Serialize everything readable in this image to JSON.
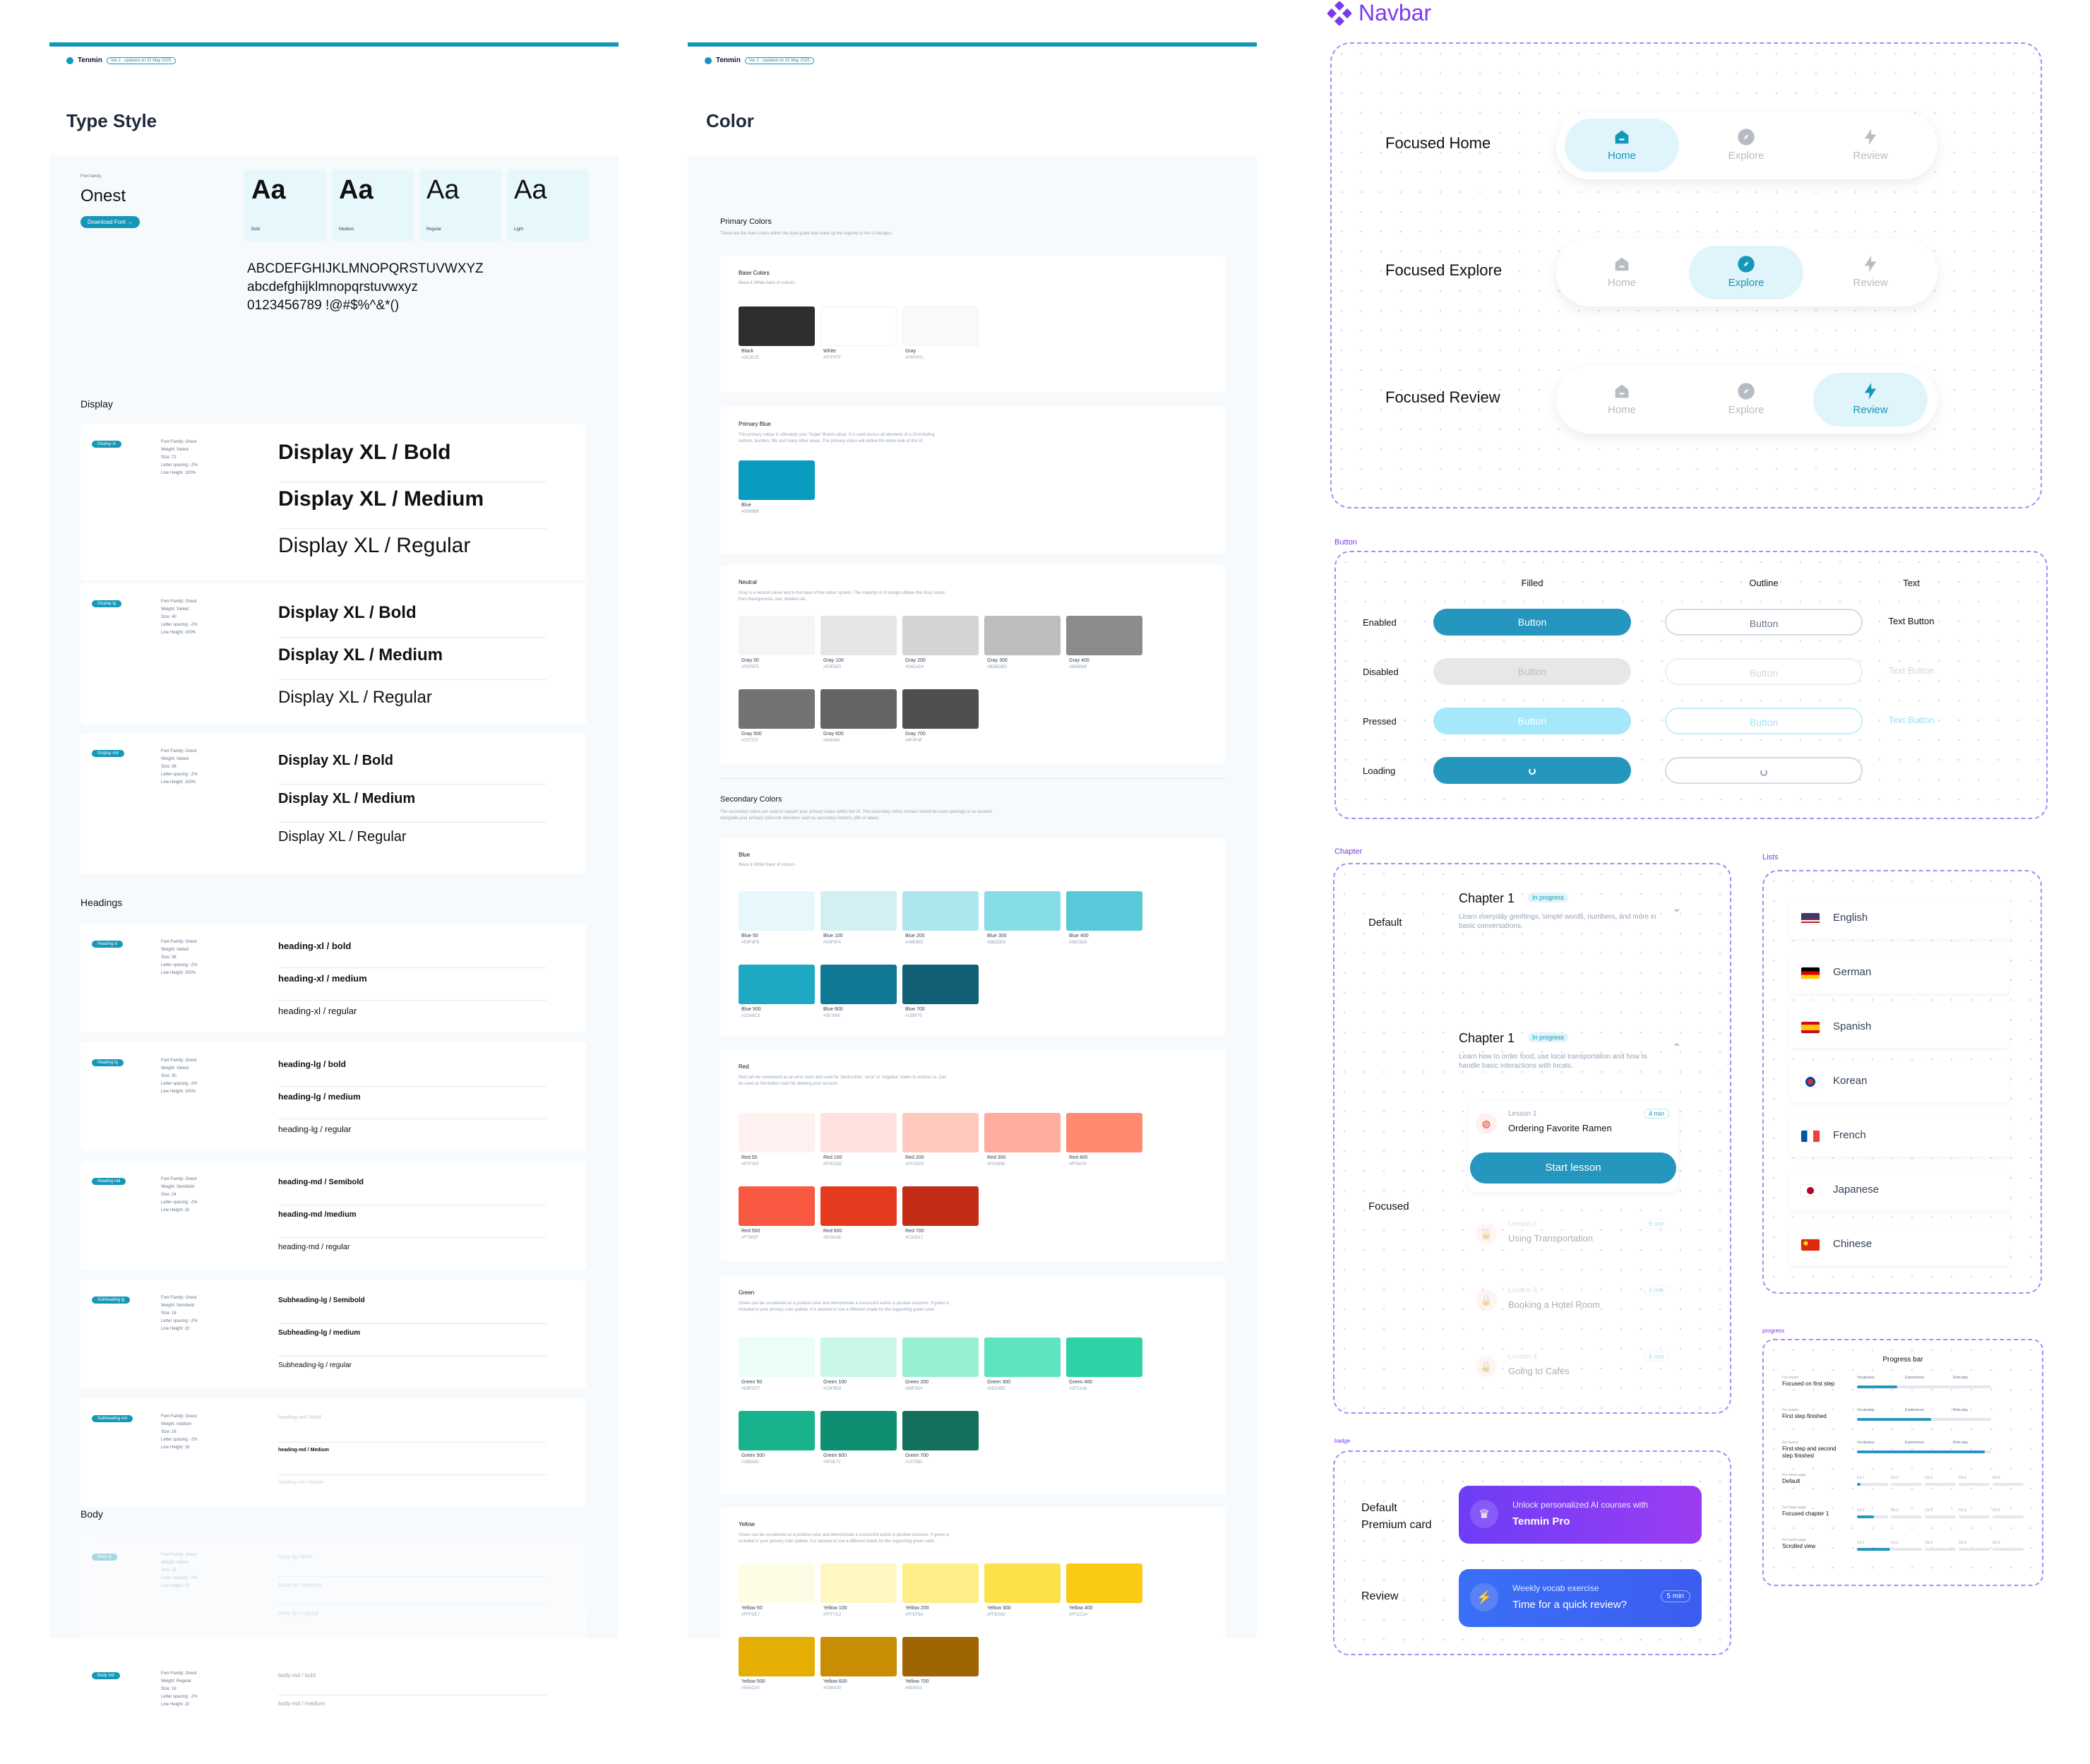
{
  "type_style": {
    "brand": "Tenmin",
    "badge": "Ver 2 · updated on 31 May 2025",
    "title": "Type Style",
    "font_family_label": "Font family",
    "font_name": "Onest",
    "download_label": "Download Font →",
    "weights": [
      {
        "sample": "Aa",
        "label": "Bold"
      },
      {
        "sample": "Aa",
        "label": "Medium"
      },
      {
        "sample": "Aa",
        "label": "Regular"
      },
      {
        "sample": "Aa",
        "label": "Light"
      }
    ],
    "alphabet_upper": "ABCDEFGHIJKLMNOPQRSTUVWXYZ",
    "alphabet_lower": "abcdefghijklmnopqrstuvwxyz",
    "alphabet_digits": "0123456789 !@#$%^&*()",
    "display_heading": "Display",
    "display_groups": [
      {
        "chip": "Display xl",
        "meta": [
          "Font Family: Onest",
          "Weight: Varied",
          "Size: 72",
          "Letter spacing: -2%",
          "Line Height: 100%"
        ],
        "samples": [
          "Display XL / Bold",
          "Display XL / Medium",
          "Display XL / Regular"
        ]
      },
      {
        "chip": "Display lg",
        "meta": [
          "Font Family: Onest",
          "Weight: Varied",
          "Size: 40",
          "Letter spacing: -2%",
          "Line Height: 100%"
        ],
        "samples": [
          "Display XL / Bold",
          "Display XL / Medium",
          "Display XL / Regular"
        ]
      },
      {
        "chip": "Display md",
        "meta": [
          "Font Family: Onest",
          "Weight: Varied",
          "Size: 36",
          "Letter spacing: -2%",
          "Line Height: 100%"
        ],
        "samples": [
          "Display XL / Bold",
          "Display XL / Medium",
          "Display XL / Regular"
        ]
      }
    ],
    "headings_heading": "Headings",
    "heading_groups": [
      {
        "chip": "Heading xl",
        "meta": [
          "Font Family: Onest",
          "Weight: Varied",
          "Size: 36",
          "Letter spacing: -2%",
          "Line Height: 100%"
        ],
        "samples": [
          "heading-xl / bold",
          "heading-xl / medium",
          "heading-xl / regular"
        ]
      },
      {
        "chip": "Heading lg",
        "meta": [
          "Font Family: Onest",
          "Weight: Varied",
          "Size: 30",
          "Letter spacing: -2%",
          "Line Height: 100%"
        ],
        "samples": [
          "heading-lg / bold",
          "heading-lg / medium",
          "heading-lg / regular"
        ]
      },
      {
        "chip": "Heading md",
        "meta": [
          "Font Family: Onest",
          "Weight: Semibold",
          "Size: 24",
          "Letter spacing: -2%",
          "Line Height: 32"
        ],
        "samples": [
          "heading-md / Semibold",
          "heading-md /medium",
          "heading-md / regular"
        ]
      },
      {
        "chip": "Subheading lg",
        "meta": [
          "Font Family: Onest",
          "Weight: Semibold",
          "Size: 18",
          "Letter spacing: -2%",
          "Line Height: 22"
        ],
        "samples": [
          "Subheading-lg / Semibold",
          "Subheading-lg / medium",
          "Subheading-lg / regular"
        ]
      },
      {
        "chip": "Subheading md",
        "meta": [
          "Font Family: Onest",
          "Weight: medium",
          "Size: 16",
          "Letter spacing: -2%",
          "Line Height: 16"
        ],
        "samples": [
          "heading-md / Bold",
          "heading-md / Medium",
          "heading-md / regular"
        ]
      }
    ],
    "body_heading": "Body",
    "body_groups": [
      {
        "chip": "Body lg",
        "meta": [
          "Font Family: Onest",
          "Weight: Varied",
          "Size: 18",
          "Letter spacing: -2%",
          "Line Height: 22"
        ],
        "samples": [
          "body-lg / bold",
          "body-lg / medium",
          "body-lg / regular"
        ]
      },
      {
        "chip": "Body md",
        "meta": [
          "Font Family: Onest",
          "Weight: Regular",
          "Size: 16",
          "Letter spacing: -2%",
          "Line Height: 22"
        ],
        "samples": [
          "body-md / bold",
          "body-md / medium"
        ]
      }
    ]
  },
  "color": {
    "brand": "Tenmin",
    "badge": "Ver 2 · updated on 31 May 2025",
    "title": "Color",
    "primary_title": "Primary Colors",
    "primary_desc": "These are the main colors within the style guide that make up the majority of the UI designs.",
    "base_title": "Base Colors",
    "base_desc": "Black & White base of colours",
    "base_swatches": [
      {
        "name": "Black",
        "hex": "#2E2E2E",
        "color": "#2e2e2e"
      },
      {
        "name": "White",
        "hex": "#FFFFFF",
        "color": "#ffffff"
      },
      {
        "name": "Gray",
        "hex": "#F9FAFC",
        "color": "#f9fafc"
      }
    ],
    "blue_title": "Primary Blue",
    "blue_desc": "This primary colour is ultimately your 'Super' Brand colour. It is used across all elements of a UI including buttons, borders, fills and many other areas. The primary colour will define the entire look of the UI.",
    "blue_swatches": [
      {
        "name": "Blue",
        "hex": "#0099BB",
        "color": "#0a9cbf"
      }
    ],
    "neutral_title": "Neutral",
    "neutral_desc": "Gray is a neutral colour and is the base of the colour system. The majority of UI design utilises the Gray colour from Backgrounds, text, dividers etc.",
    "neutral_swatches": [
      {
        "name": "Gray 50",
        "hex": "#F5F5F5",
        "color": "#f5f5f5"
      },
      {
        "name": "Gray 100",
        "hex": "#E5E5E5",
        "color": "#e5e5e5"
      },
      {
        "name": "Gray 200",
        "hex": "#D4D4D4",
        "color": "#d4d4d4"
      },
      {
        "name": "Gray 300",
        "hex": "#BDBDBD",
        "color": "#bdbdbd"
      },
      {
        "name": "Gray 400",
        "hex": "#8B8B8B",
        "color": "#8b8b8b"
      },
      {
        "name": "Gray 500",
        "hex": "#737373",
        "color": "#737373"
      },
      {
        "name": "Gray 600",
        "hex": "#646464",
        "color": "#646464"
      },
      {
        "name": "Gray 700",
        "hex": "#4F4F4F",
        "color": "#4f4f4f"
      }
    ],
    "secondary_title": "Secondary Colors",
    "secondary_desc": "The secondary colors are used to support your primary colors within the UI. The secondary colors chosen should be used sparingly or as accents alongside your primary colors for elements such as secondary buttons, pills or labels.",
    "sec_blue_title": "Blue",
    "sec_blue_desc": "Black & White base of colours",
    "sec_blue_swatches": [
      {
        "name": "Blue 50",
        "hex": "#E6F8FB",
        "color": "#e6f8fb"
      },
      {
        "name": "Blue 100",
        "hex": "#D4F0F4",
        "color": "#d3eff2"
      },
      {
        "name": "Blue 200",
        "hex": "#A8E6EE",
        "color": "#ade6ec"
      },
      {
        "name": "Blue 300",
        "hex": "#86DDE8",
        "color": "#86dde8"
      },
      {
        "name": "Blue 400",
        "hex": "#58C9D8",
        "color": "#58c9d8"
      },
      {
        "name": "Blue 500",
        "hex": "#1DA9C3",
        "color": "#1da9c3"
      },
      {
        "name": "Blue 600",
        "hex": "#0E7895",
        "color": "#0e7895"
      },
      {
        "name": "Blue 700",
        "hex": "#135F75",
        "color": "#135f75"
      }
    ],
    "red_title": "Red",
    "red_desc": "Red can be considered as an error color and used for 'destructive', 'error' or 'negative' states to actions i.e. Can be used as the button color for deleting your account.",
    "red_swatches": [
      {
        "name": "Red 50",
        "hex": "#FFF1EF",
        "color": "#fff1ef"
      },
      {
        "name": "Red 100",
        "hex": "#FFE2DE",
        "color": "#ffe2de"
      },
      {
        "name": "Red 200",
        "hex": "#FFC9C0",
        "color": "#ffc9c0"
      },
      {
        "name": "Red 300",
        "hex": "#FFAB9E",
        "color": "#ffab9e"
      },
      {
        "name": "Red 400",
        "hex": "#FF8A70",
        "color": "#ff8a70"
      },
      {
        "name": "Red 500",
        "hex": "#F7583F",
        "color": "#f7583f"
      },
      {
        "name": "Red 600",
        "hex": "#E53A1E",
        "color": "#e53a1e"
      },
      {
        "name": "Red 700",
        "hex": "#C32D17",
        "color": "#c32d17"
      }
    ],
    "green_title": "Green",
    "green_desc": "Green can be considered as a positive color and demonstrate a successful action is positive outcome. If green is included in your primary color palette, it is advised to use a different shade for the supporting green color.",
    "green_swatches": [
      {
        "name": "Green 50",
        "hex": "#EBFDF7",
        "color": "#ebfdf7"
      },
      {
        "name": "Green 100",
        "hex": "#C9F8E8",
        "color": "#c9f8e8"
      },
      {
        "name": "Green 200",
        "hex": "#98F0D4",
        "color": "#98f0d4"
      },
      {
        "name": "Green 300",
        "hex": "#5EE4BE",
        "color": "#5ee4be"
      },
      {
        "name": "Green 400",
        "hex": "#2FD1A6",
        "color": "#2fd1a6"
      },
      {
        "name": "Green 500",
        "hex": "#16B38D",
        "color": "#16b38d"
      },
      {
        "name": "Green 600",
        "hex": "#0F8E72",
        "color": "#0f8e72"
      },
      {
        "name": "Green 700",
        "hex": "#13705D",
        "color": "#13705d"
      }
    ],
    "yellow_title": "Yellow",
    "yellow_desc": "Green can be considered as a positive color and demonstrate a successful action is positive outcome. If green is included in your primary color palette, it is advised to use a different shade for the supporting green color.",
    "yellow_swatches": [
      {
        "name": "Yellow 50",
        "hex": "#FFFDE7",
        "color": "#fffce5"
      },
      {
        "name": "Yellow 100",
        "hex": "#FFF7C2",
        "color": "#fff7c2"
      },
      {
        "name": "Yellow 200",
        "hex": "#FFEF8A",
        "color": "#ffee88"
      },
      {
        "name": "Yellow 300",
        "hex": "#FFE04D",
        "color": "#fde14a"
      },
      {
        "name": "Yellow 400",
        "hex": "#FFCC14",
        "color": "#fbcb14"
      },
      {
        "name": "Yellow 500",
        "hex": "#E6AC00",
        "color": "#e5ae04"
      },
      {
        "name": "Yellow 600",
        "hex": "#C68A00",
        "color": "#c88d02"
      },
      {
        "name": "Yellow 700",
        "hex": "#9E6502",
        "color": "#a06503"
      }
    ]
  },
  "navbar": {
    "title": "Navbar",
    "rows": [
      {
        "label": "Focused Home",
        "active": 0
      },
      {
        "label": "Focused Explore",
        "active": 1
      },
      {
        "label": "Focused Review",
        "active": 2
      }
    ],
    "items": [
      {
        "label": "Home",
        "icon": "home-icon"
      },
      {
        "label": "Explore",
        "icon": "compass-icon"
      },
      {
        "label": "Review",
        "icon": "bolt-icon"
      }
    ]
  },
  "button_section": {
    "tag": "Button",
    "columns": [
      "Filled",
      "Outline",
      "Text"
    ],
    "states": [
      "Enabled",
      "Disabled",
      "Pressed",
      "Loading"
    ],
    "button_label": "Button",
    "text_button_label": "Text Button"
  },
  "chapter_section": {
    "tag": "Chapter",
    "default_label": "Default",
    "focused_label": "Focused",
    "default_card": {
      "title": "Chapter 1",
      "badge": "In progress",
      "desc": "Learn everyday greetings, simple words, numbers, and more in basic conversations."
    },
    "focused_card": {
      "title": "Chapter 1",
      "badge": "In progress",
      "desc": "Learn how to order food, use local transportation and how to handle basic interactions with locals."
    },
    "lessons": [
      {
        "kicker": "Lesson 1",
        "title": "Ordering Favorite Ramen",
        "time": "4 min"
      },
      {
        "kicker": "Lesson 2",
        "title": "Using Transportation",
        "time": "5 min"
      },
      {
        "kicker": "Lesson 3",
        "title": "Booking a Hotel Room",
        "time": "5 min"
      },
      {
        "kicker": "Lesson 4",
        "title": "Going to Cafes",
        "time": "6 min"
      }
    ],
    "start_label": "Start lesson"
  },
  "lists_section": {
    "tag": "Lists",
    "languages": [
      "English",
      "German",
      "Spanish",
      "Korean",
      "French",
      "Japanese",
      "Chinese"
    ]
  },
  "progress_section": {
    "tag": "progress",
    "title": "Progress bar",
    "rows": [
      {
        "kicker": "For lesson",
        "label": "Focused on first step"
      },
      {
        "kicker": "For lesson",
        "label": "First step finished"
      },
      {
        "kicker": "For lesson",
        "label": "First step and second step finished"
      },
      {
        "kicker": "For home page",
        "label": "Default"
      },
      {
        "kicker": "For home page",
        "label": "Focused chapter 1"
      },
      {
        "kicker": "For home page",
        "label": "Scrolled view"
      }
    ],
    "steps": [
      "Vocabulary",
      "Expressions",
      "Role-play"
    ],
    "chapters": [
      "Ch.1",
      "Ch.2",
      "Ch.3",
      "Ch.4",
      "Ch.5"
    ]
  },
  "badge_section": {
    "tag": "badge",
    "premium_label": "Default Premium card",
    "premium_line1": "Unlock personalized AI courses with",
    "premium_line2": "Tenmin Pro",
    "review_label": "Review",
    "review_line1": "Weekly vocab exercise",
    "review_line2": "Time for a quick review?",
    "review_time": "5 min"
  },
  "colors": {
    "primary": "#1597b8",
    "accent_purple": "#7c3aed",
    "review_blue": "#3b82f6"
  }
}
